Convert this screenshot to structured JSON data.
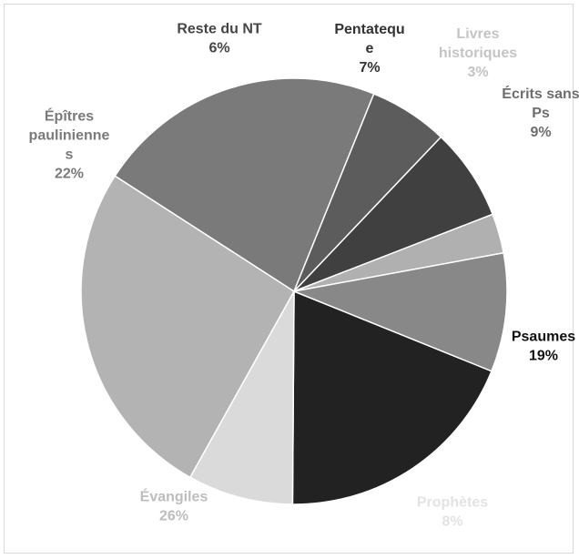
{
  "chart_data": {
    "type": "pie",
    "title": "",
    "start_angle_deg": 22,
    "direction": "clockwise",
    "slices": [
      {
        "label_lines": [
          "Psaumes"
        ],
        "value_text": "19%",
        "value": 19,
        "color": "#222222",
        "label_color": "#111111"
      },
      {
        "label_lines": [
          "Prophètes"
        ],
        "value_text": "8%",
        "value": 8,
        "color": "#dadada",
        "label_color": "#e3e3e3"
      },
      {
        "label_lines": [
          "Évangiles"
        ],
        "value_text": "26%",
        "value": 26,
        "color": "#b3b3b3",
        "label_color": "#bdbdbd"
      },
      {
        "label_lines": [
          "Épîtres",
          "paulinienne",
          "s"
        ],
        "value_text": "22%",
        "value": 22,
        "color": "#7a7a7a",
        "label_color": "#7a7a7a"
      },
      {
        "label_lines": [
          "Reste du NT"
        ],
        "value_text": "6%",
        "value": 6,
        "color": "#5c5c5c",
        "label_color": "#454545"
      },
      {
        "label_lines": [
          "Pentatequ",
          "e"
        ],
        "value_text": "7%",
        "value": 7,
        "color": "#404040",
        "label_color": "#333333"
      },
      {
        "label_lines": [
          "Livres",
          "historiques"
        ],
        "value_text": "3%",
        "value": 3,
        "color": "#b0b0b0",
        "label_color": "#c4c4c4"
      },
      {
        "label_lines": [
          "Écrits sans",
          "Ps"
        ],
        "value_text": "9%",
        "value": 9,
        "color": "#888888",
        "label_color": "#6e6e6e"
      }
    ]
  }
}
